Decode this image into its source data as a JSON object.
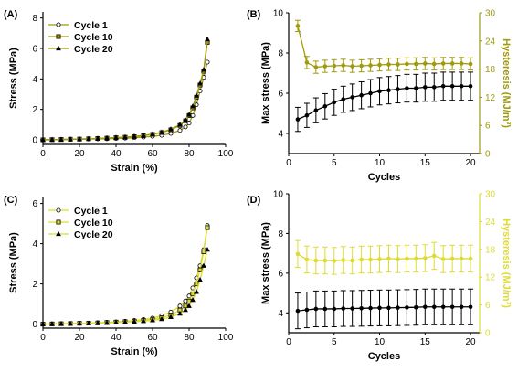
{
  "panels": [
    {
      "id": "A",
      "label": "(A)",
      "kind": "curve",
      "xlabel": "Strain (%)",
      "ylabel": "Stress (MPa)",
      "xlim": [
        0,
        100
      ],
      "ylim": [
        -0.3,
        8.4
      ],
      "xticks": [
        0,
        20,
        40,
        60,
        80,
        100
      ],
      "yticks": [
        0,
        2,
        4,
        6,
        8
      ],
      "color": "#a09a0c",
      "legend": [
        "Cycle 1",
        "Cycle 10",
        "Cycle 20"
      ],
      "series": [
        {
          "name": "Cycle 1",
          "marker": "circle",
          "x": [
            0,
            5,
            10,
            15,
            20,
            25,
            30,
            35,
            40,
            45,
            50,
            55,
            60,
            65,
            70,
            75,
            78,
            80,
            82,
            84,
            86,
            88,
            90
          ],
          "y": [
            0,
            0.01,
            0.02,
            0.03,
            0.04,
            0.05,
            0.06,
            0.07,
            0.09,
            0.11,
            0.14,
            0.18,
            0.23,
            0.3,
            0.42,
            0.62,
            0.85,
            1.1,
            1.6,
            2.3,
            3.2,
            4.1,
            5.1
          ]
        },
        {
          "name": "Cycle 10",
          "marker": "square",
          "x": [
            0,
            5,
            10,
            15,
            20,
            25,
            30,
            35,
            40,
            45,
            50,
            55,
            60,
            65,
            70,
            75,
            78,
            80,
            82,
            84,
            86,
            88,
            90
          ],
          "y": [
            0,
            0.01,
            0.02,
            0.04,
            0.05,
            0.07,
            0.09,
            0.11,
            0.14,
            0.17,
            0.21,
            0.27,
            0.36,
            0.48,
            0.66,
            0.95,
            1.25,
            1.6,
            2.1,
            2.8,
            3.6,
            4.5,
            6.4
          ]
        },
        {
          "name": "Cycle 20",
          "marker": "triangle",
          "x": [
            0,
            5,
            10,
            15,
            20,
            25,
            30,
            35,
            40,
            45,
            50,
            55,
            60,
            65,
            70,
            75,
            78,
            80,
            82,
            84,
            86,
            88,
            90
          ],
          "y": [
            0,
            0.01,
            0.02,
            0.04,
            0.05,
            0.07,
            0.09,
            0.12,
            0.15,
            0.18,
            0.23,
            0.29,
            0.38,
            0.5,
            0.7,
            1.0,
            1.3,
            1.65,
            2.2,
            2.9,
            3.7,
            4.6,
            6.6
          ]
        }
      ]
    },
    {
      "id": "B",
      "label": "(B)",
      "kind": "cycles",
      "xlabel": "Cycles",
      "ylabel_left": "Max stress (MPa)",
      "ylabel_right": "Hysteresis (MJ/m³)",
      "xlim": [
        0,
        21
      ],
      "ylim_left": [
        3,
        10
      ],
      "ylim_right": [
        0,
        30
      ],
      "xticks": [
        0,
        5,
        10,
        15,
        20
      ],
      "yticks_left": [
        4,
        6,
        8,
        10
      ],
      "yticks_right": [
        0,
        6,
        12,
        18,
        24,
        30
      ],
      "right_color": "#a09a0c",
      "cycles": [
        1,
        2,
        3,
        4,
        5,
        6,
        7,
        8,
        9,
        10,
        11,
        12,
        13,
        14,
        15,
        16,
        17,
        18,
        19,
        20
      ],
      "max_stress": [
        4.7,
        4.9,
        5.15,
        5.35,
        5.55,
        5.7,
        5.8,
        5.9,
        6.0,
        6.1,
        6.15,
        6.2,
        6.25,
        6.25,
        6.3,
        6.3,
        6.35,
        6.35,
        6.35,
        6.35
      ],
      "max_stress_err": [
        0.6,
        0.6,
        0.62,
        0.63,
        0.65,
        0.65,
        0.66,
        0.67,
        0.68,
        0.68,
        0.68,
        0.68,
        0.69,
        0.69,
        0.7,
        0.7,
        0.7,
        0.7,
        0.7,
        0.7
      ],
      "hysteresis": [
        27.2,
        19.4,
        18.4,
        18.6,
        18.7,
        18.8,
        18.6,
        18.7,
        18.8,
        18.9,
        19.0,
        19.0,
        19.1,
        19.1,
        19.2,
        19.1,
        19.2,
        19.2,
        19.2,
        19.1
      ],
      "hysteresis_err": [
        1.2,
        1.3,
        1.3,
        1.3,
        1.3,
        1.3,
        1.3,
        1.3,
        1.3,
        1.3,
        1.3,
        1.3,
        1.3,
        1.3,
        1.3,
        1.3,
        1.3,
        1.3,
        1.3,
        1.3
      ]
    },
    {
      "id": "C",
      "label": "(C)",
      "kind": "curve",
      "xlabel": "Strain (%)",
      "ylabel": "Stress (MPa)",
      "xlim": [
        0,
        100
      ],
      "ylim": [
        -0.2,
        6.3
      ],
      "xticks": [
        0,
        20,
        40,
        60,
        80,
        100
      ],
      "yticks": [
        0,
        2,
        4,
        6
      ],
      "color": "#dedc33",
      "legend": [
        "Cycle 1",
        "Cycle 10",
        "Cycle 20"
      ],
      "series": [
        {
          "name": "Cycle 1",
          "marker": "circle",
          "x": [
            0,
            5,
            10,
            15,
            20,
            25,
            30,
            35,
            40,
            45,
            50,
            55,
            60,
            65,
            70,
            75,
            78,
            80,
            82,
            84,
            86,
            88,
            90
          ],
          "y": [
            0,
            0.01,
            0.02,
            0.03,
            0.04,
            0.05,
            0.07,
            0.09,
            0.11,
            0.14,
            0.18,
            0.23,
            0.3,
            0.42,
            0.6,
            0.9,
            1.15,
            1.4,
            1.8,
            2.3,
            2.9,
            3.7,
            4.9
          ]
        },
        {
          "name": "Cycle 10",
          "marker": "square",
          "x": [
            0,
            5,
            10,
            15,
            20,
            25,
            30,
            35,
            40,
            45,
            50,
            55,
            60,
            65,
            70,
            75,
            78,
            80,
            82,
            84,
            86,
            88,
            90
          ],
          "y": [
            0,
            0.01,
            0.02,
            0.03,
            0.04,
            0.05,
            0.06,
            0.08,
            0.1,
            0.12,
            0.15,
            0.19,
            0.24,
            0.32,
            0.45,
            0.7,
            0.9,
            1.15,
            1.5,
            2.0,
            2.7,
            3.6,
            4.8
          ]
        },
        {
          "name": "Cycle 20",
          "marker": "triangle",
          "x": [
            0,
            5,
            10,
            15,
            20,
            25,
            30,
            35,
            40,
            45,
            50,
            55,
            60,
            65,
            70,
            75,
            78,
            80,
            82,
            84,
            86,
            88,
            90
          ],
          "y": [
            0,
            0.01,
            0.01,
            0.02,
            0.03,
            0.04,
            0.05,
            0.06,
            0.08,
            0.1,
            0.12,
            0.15,
            0.19,
            0.25,
            0.35,
            0.52,
            0.7,
            0.9,
            1.2,
            1.6,
            2.2,
            2.9,
            3.7
          ]
        }
      ]
    },
    {
      "id": "D",
      "label": "(D)",
      "kind": "cycles",
      "xlabel": "Cycles",
      "ylabel_left": "Max stress (MPa)",
      "ylabel_right": "Hysteresis (MJ/m³)",
      "xlim": [
        0,
        21
      ],
      "ylim_left": [
        3,
        10
      ],
      "ylim_right": [
        0,
        30
      ],
      "xticks": [
        0,
        5,
        10,
        15,
        20
      ],
      "yticks_left": [
        4,
        6,
        8,
        10
      ],
      "yticks_right": [
        0,
        6,
        12,
        18,
        24,
        30
      ],
      "right_color": "#dedc33",
      "cycles": [
        1,
        2,
        3,
        4,
        5,
        6,
        7,
        8,
        9,
        10,
        11,
        12,
        13,
        14,
        15,
        16,
        17,
        18,
        19,
        20
      ],
      "max_stress": [
        4.1,
        4.15,
        4.2,
        4.2,
        4.2,
        4.22,
        4.22,
        4.23,
        4.24,
        4.25,
        4.25,
        4.26,
        4.27,
        4.28,
        4.3,
        4.3,
        4.3,
        4.3,
        4.3,
        4.3
      ],
      "max_stress_err": [
        0.9,
        0.9,
        0.9,
        0.9,
        0.9,
        0.9,
        0.9,
        0.9,
        0.9,
        0.9,
        0.9,
        0.9,
        0.9,
        0.9,
        0.9,
        0.9,
        0.9,
        0.9,
        0.9,
        0.9
      ],
      "hysteresis": [
        17.0,
        15.8,
        15.6,
        15.6,
        15.5,
        15.7,
        15.6,
        15.8,
        15.8,
        15.9,
        16.0,
        15.9,
        16.0,
        16.0,
        16.1,
        16.6,
        15.9,
        16.0,
        16.0,
        16.0
      ],
      "hysteresis_err": [
        2.9,
        2.9,
        2.9,
        2.9,
        2.9,
        2.9,
        2.9,
        2.9,
        2.9,
        2.9,
        2.9,
        2.9,
        2.9,
        2.9,
        2.9,
        2.9,
        2.9,
        2.9,
        2.9,
        2.9
      ]
    }
  ]
}
